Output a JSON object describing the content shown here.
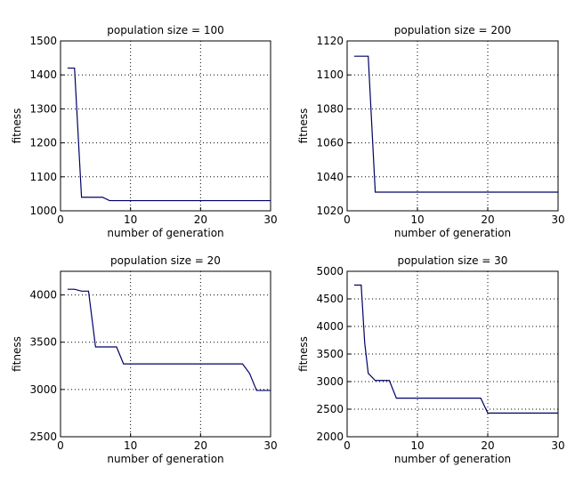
{
  "chart_data": [
    {
      "type": "line",
      "title": "population size = 100",
      "xlabel": "number of generation",
      "ylabel": "fitness",
      "xlim": [
        0,
        30
      ],
      "ylim": [
        1000,
        1500
      ],
      "xticks": [
        0,
        10,
        20,
        30
      ],
      "yticks": [
        1000,
        1100,
        1200,
        1300,
        1400,
        1500
      ],
      "grid": true,
      "color": "#000066",
      "x": [
        1,
        2,
        3,
        6,
        7,
        30
      ],
      "y": [
        1420,
        1420,
        1040,
        1040,
        1030,
        1030
      ]
    },
    {
      "type": "line",
      "title": "population size = 200",
      "xlabel": "number of generation",
      "ylabel": "fitness",
      "xlim": [
        0,
        30
      ],
      "ylim": [
        1020,
        1120
      ],
      "xticks": [
        0,
        10,
        20,
        30
      ],
      "yticks": [
        1020,
        1040,
        1060,
        1080,
        1100,
        1120
      ],
      "grid": true,
      "color": "#000066",
      "x": [
        1,
        3,
        4,
        30
      ],
      "y": [
        1111,
        1111,
        1031,
        1031
      ]
    },
    {
      "type": "line",
      "title": "population size = 20",
      "xlabel": "number of generation",
      "ylabel": "fitness",
      "xlim": [
        0,
        30
      ],
      "ylim": [
        2500,
        4250
      ],
      "xticks": [
        0,
        10,
        20,
        30
      ],
      "yticks": [
        2500,
        3000,
        3500,
        4000
      ],
      "grid": true,
      "color": "#000066",
      "x": [
        1,
        2,
        3,
        4,
        5,
        8,
        9,
        26,
        27,
        28,
        30
      ],
      "y": [
        4060,
        4060,
        4040,
        4040,
        3450,
        3450,
        3270,
        3270,
        3170,
        2990,
        2990
      ]
    },
    {
      "type": "line",
      "title": "population size = 30",
      "xlabel": "number of generation",
      "ylabel": "fitness",
      "xlim": [
        0,
        30
      ],
      "ylim": [
        2000,
        5000
      ],
      "xticks": [
        0,
        10,
        20,
        30
      ],
      "yticks": [
        2000,
        2500,
        3000,
        3500,
        4000,
        4500,
        5000
      ],
      "grid": true,
      "color": "#000066",
      "x": [
        1,
        2,
        2.5,
        3,
        4,
        6,
        7,
        19,
        20,
        30
      ],
      "y": [
        4750,
        4750,
        3700,
        3150,
        3020,
        3020,
        2700,
        2700,
        2430,
        2430
      ]
    }
  ]
}
